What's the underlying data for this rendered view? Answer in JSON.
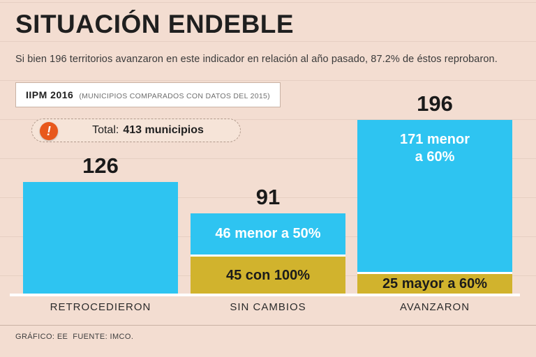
{
  "header": {
    "title": "SITUACIÓN ENDEBLE",
    "subtitle": "Si bien 196 territorios avanzaron en este indicador en relación al año pasado, 87.2% de éstos reprobaron."
  },
  "badge": {
    "title": "IIPM 2016",
    "note": "(MUNICIPIOS COMPARADOS CON DATOS DEL 2015)"
  },
  "total": {
    "label": "Total:",
    "value": "413 municipios",
    "icon": "exclamation-icon",
    "icon_glyph": "!"
  },
  "footer": {
    "credit": "GRÁFICO: EE  FUENTE: IMCO."
  },
  "colors": {
    "background": "#f3ddd1",
    "gridline": "#e6cfc2",
    "cyan": "#2ec4f1",
    "gold": "#d1b32d",
    "alert": "#e8581c",
    "text_dark": "#1b1b1b",
    "white": "#ffffff"
  },
  "chart_data": {
    "type": "bar",
    "title": "IIPM 2016 (Municipios comparados con datos del 2015)",
    "subtitle": "Total: 413 municipios",
    "categories": [
      "RETROCEDIERON",
      "SIN CAMBIOS",
      "AVANZARON"
    ],
    "totals": [
      126,
      91,
      196
    ],
    "ylim": [
      0,
      196
    ],
    "grid": "horizontal",
    "legend": "none",
    "bars": [
      {
        "category": "RETROCEDIERON",
        "total": 126,
        "segments": [
          {
            "value": 126,
            "label": "",
            "color_key": "cyan",
            "text_color": "#ffffff",
            "align": "center"
          }
        ]
      },
      {
        "category": "SIN CAMBIOS",
        "total": 91,
        "segments": [
          {
            "value": 46,
            "label": "46 menor a 50%",
            "color_key": "cyan",
            "text_color": "#ffffff",
            "align": "center"
          },
          {
            "value": 45,
            "label": "45 con 100%",
            "color_key": "gold",
            "text_color": "#1b1b1b",
            "align": "center"
          }
        ]
      },
      {
        "category": "AVANZARON",
        "total": 196,
        "segments": [
          {
            "value": 171,
            "label": "171 menor\na 60%",
            "color_key": "cyan",
            "text_color": "#ffffff",
            "align": "top"
          },
          {
            "value": 25,
            "label": "25 mayor a 60%",
            "color_key": "gold",
            "text_color": "#1b1b1b",
            "align": "center"
          }
        ]
      }
    ]
  }
}
